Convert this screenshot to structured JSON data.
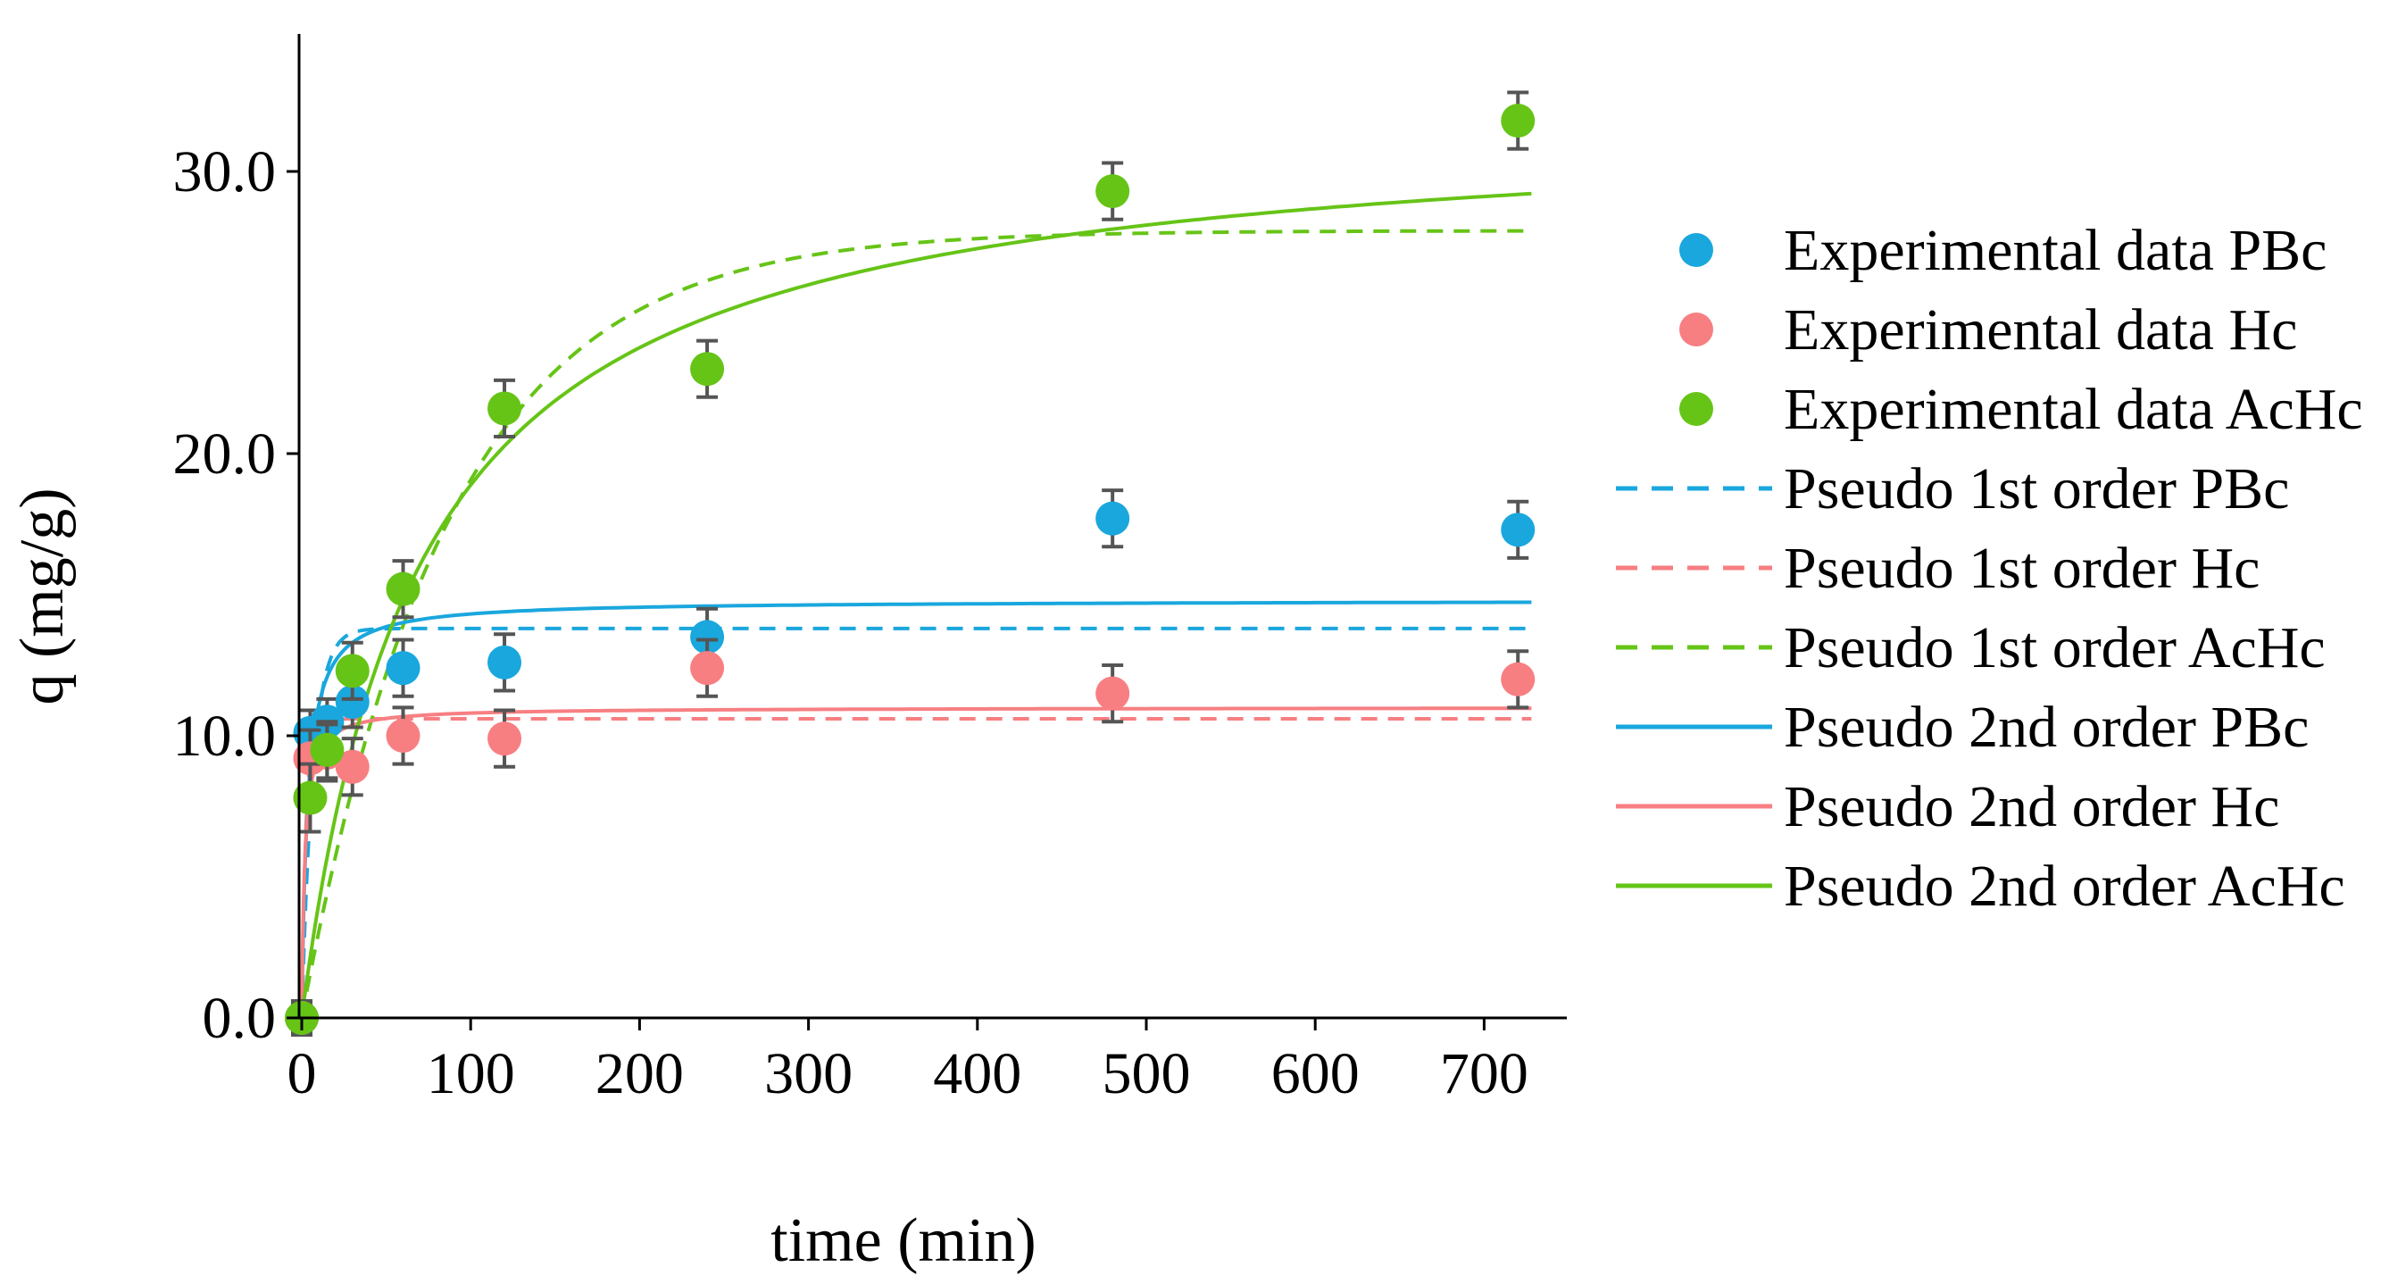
{
  "chart_data": {
    "type": "scatter",
    "xlabel": "time (min)",
    "ylabel": "q (mg/g)",
    "xlim": [
      -5,
      750
    ],
    "ylim": [
      0,
      35
    ],
    "x_ticks": [
      0,
      100,
      200,
      300,
      400,
      500,
      600,
      700
    ],
    "x_tick_labels": [
      "0",
      "100",
      "200",
      "300",
      "400",
      "500",
      "600",
      "700"
    ],
    "y_ticks": [
      0,
      10,
      20,
      30
    ],
    "y_tick_labels": [
      "0.0",
      "10.0",
      "20.0",
      "30.0"
    ],
    "grid": false,
    "legend_position": "right",
    "colors": {
      "PBc": "#1aa7dd",
      "Hc": "#f77f82",
      "AcHc": "#66c417",
      "error_bar": "#555555",
      "axis": "#000000"
    },
    "experimental": [
      {
        "name": "Experimental data PBc",
        "color_key": "PBc",
        "x": [
          0,
          5,
          15,
          30,
          60,
          120,
          240,
          480,
          720
        ],
        "y": [
          0,
          10.1,
          10.5,
          11.2,
          12.4,
          12.6,
          13.5,
          17.7,
          17.3
        ],
        "err": [
          0.6,
          0.8,
          0.8,
          0.9,
          1.0,
          1.0,
          1.0,
          1.0,
          1.0
        ]
      },
      {
        "name": "Experimental data Hc",
        "color_key": "Hc",
        "x": [
          0,
          5,
          15,
          30,
          60,
          120,
          240,
          480,
          720
        ],
        "y": [
          0,
          9.2,
          9.4,
          8.9,
          10.0,
          9.9,
          12.4,
          11.5,
          12.0
        ],
        "err": [
          0.5,
          1.0,
          1.0,
          1.0,
          1.0,
          1.0,
          1.0,
          1.0,
          1.0
        ]
      },
      {
        "name": "Experimental data AcHc",
        "color_key": "AcHc",
        "x": [
          0,
          5,
          15,
          30,
          60,
          120,
          240,
          480,
          720
        ],
        "y": [
          0,
          7.8,
          9.5,
          12.3,
          15.2,
          21.6,
          23.0,
          29.3,
          31.8
        ],
        "err": [
          0.5,
          1.2,
          1.0,
          1.0,
          1.0,
          1.0,
          1.0,
          1.0,
          1.0
        ]
      }
    ],
    "models": [
      {
        "name": "Pseudo 1st order PBc",
        "color_key": "PBc",
        "style": "dashed",
        "kind": "pfo",
        "qe": 13.8,
        "k": 0.15
      },
      {
        "name": "Pseudo 1st order Hc",
        "color_key": "Hc",
        "style": "dashed",
        "kind": "pfo",
        "qe": 10.6,
        "k": 0.4
      },
      {
        "name": "Pseudo 1st order AcHc",
        "color_key": "AcHc",
        "style": "dashed",
        "kind": "pfo",
        "qe": 27.9,
        "k": 0.0115
      },
      {
        "name": "Pseudo 2nd order PBc",
        "color_key": "PBc",
        "style": "solid",
        "kind": "pso",
        "qe": 14.8,
        "k": 0.02
      },
      {
        "name": "Pseudo 2nd order Hc",
        "color_key": "Hc",
        "style": "solid",
        "kind": "pso",
        "qe": 11.0,
        "k": 0.05
      },
      {
        "name": "Pseudo 2nd order AcHc",
        "color_key": "AcHc",
        "style": "solid",
        "kind": "pso",
        "qe": 32.0,
        "k": 0.00045
      }
    ]
  }
}
